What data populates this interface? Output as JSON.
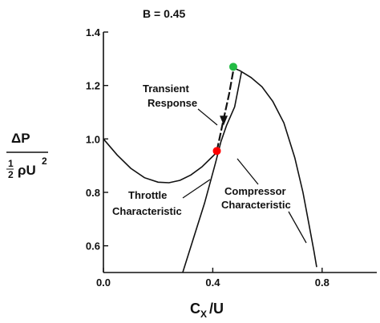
{
  "chart_data": {
    "type": "line",
    "title": "B = 0.45",
    "xlabel": "C",
    "xlabel_sub": "X",
    "xlabel_tail": "/U",
    "ylabel_top": "ΔP",
    "ylabel_half": "1",
    "ylabel_half_den": "2",
    "ylabel_rho": "ρU",
    "ylabel_exp": "2",
    "xlim": [
      0.0,
      1.0
    ],
    "ylim": [
      0.5,
      1.4
    ],
    "x_ticks": [
      {
        "value": 0.0,
        "label": "0.0"
      },
      {
        "value": 0.4,
        "label": "0.4"
      },
      {
        "value": 0.8,
        "label": "0.8"
      }
    ],
    "y_ticks": [
      {
        "value": 0.6,
        "label": "0.6"
      },
      {
        "value": 0.8,
        "label": "0.8"
      },
      {
        "value": 1.0,
        "label": "1.0"
      },
      {
        "value": 1.2,
        "label": "1.2"
      },
      {
        "value": 1.4,
        "label": "1.4"
      }
    ],
    "grid": false,
    "series": [
      {
        "name": "",
        "points": [
          [
            0.0,
            1.0
          ],
          [
            0.05,
            0.94
          ],
          [
            0.1,
            0.89
          ],
          [
            0.15,
            0.855
          ],
          [
            0.2,
            0.838
          ],
          [
            0.24,
            0.836
          ],
          [
            0.28,
            0.845
          ],
          [
            0.32,
            0.865
          ],
          [
            0.36,
            0.895
          ],
          [
            0.4,
            0.935
          ],
          [
            0.42,
            0.955
          ]
        ]
      },
      {
        "name": "",
        "points": [
          [
            0.29,
            0.5
          ],
          [
            0.33,
            0.63
          ],
          [
            0.37,
            0.76
          ],
          [
            0.41,
            0.91
          ],
          [
            0.43,
            0.99
          ],
          [
            0.45,
            1.05
          ],
          [
            0.48,
            1.12
          ],
          [
            0.505,
            1.25
          ]
        ]
      },
      {
        "name": "",
        "points": [
          [
            0.465,
            1.27
          ],
          [
            0.5,
            1.255
          ],
          [
            0.54,
            1.23
          ],
          [
            0.58,
            1.195
          ],
          [
            0.62,
            1.14
          ],
          [
            0.66,
            1.06
          ],
          [
            0.7,
            0.93
          ],
          [
            0.73,
            0.8
          ],
          [
            0.75,
            0.69
          ],
          [
            0.77,
            0.58
          ],
          [
            0.78,
            0.52
          ]
        ]
      },
      {
        "name": "",
        "points": [
          [
            0.415,
            0.955
          ],
          [
            0.44,
            1.075
          ],
          [
            0.46,
            1.17
          ],
          [
            0.475,
            1.255
          ]
        ]
      }
    ],
    "points_marked": [
      {
        "x": 0.415,
        "y": 0.955,
        "color": "#ff0000"
      },
      {
        "x": 0.475,
        "y": 1.27,
        "color": "#22bb44"
      }
    ],
    "annotations": [
      {
        "line1": "Transient",
        "line2": "Response"
      },
      {
        "line1": "Throttle",
        "line2": "Characteristic"
      },
      {
        "line1": "Compressor",
        "line2": "Characteristic"
      }
    ]
  }
}
